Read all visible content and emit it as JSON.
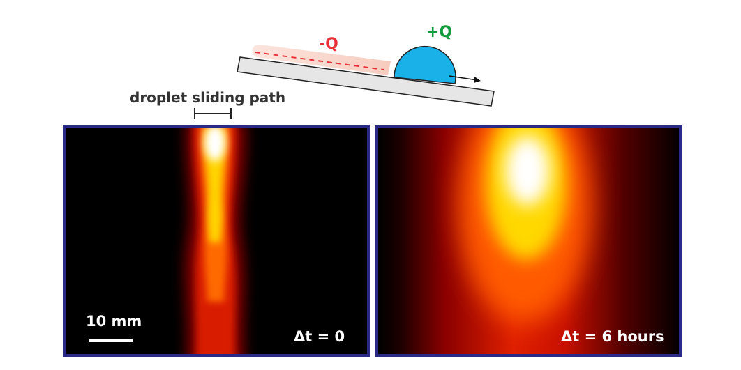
{
  "schematic": {
    "neg_charge": "-Q",
    "pos_charge": "+Q",
    "path_label": "droplet sliding path",
    "colors": {
      "negative": "#e8303a",
      "positive": "#139b3b",
      "droplet": "#1ab0e8",
      "charged_layer": "#f9d9d0"
    }
  },
  "panels": {
    "left": {
      "time_label": "Δt = 0",
      "scale_label": "10 mm"
    },
    "right": {
      "time_label": "Δt = 6 hours"
    }
  }
}
